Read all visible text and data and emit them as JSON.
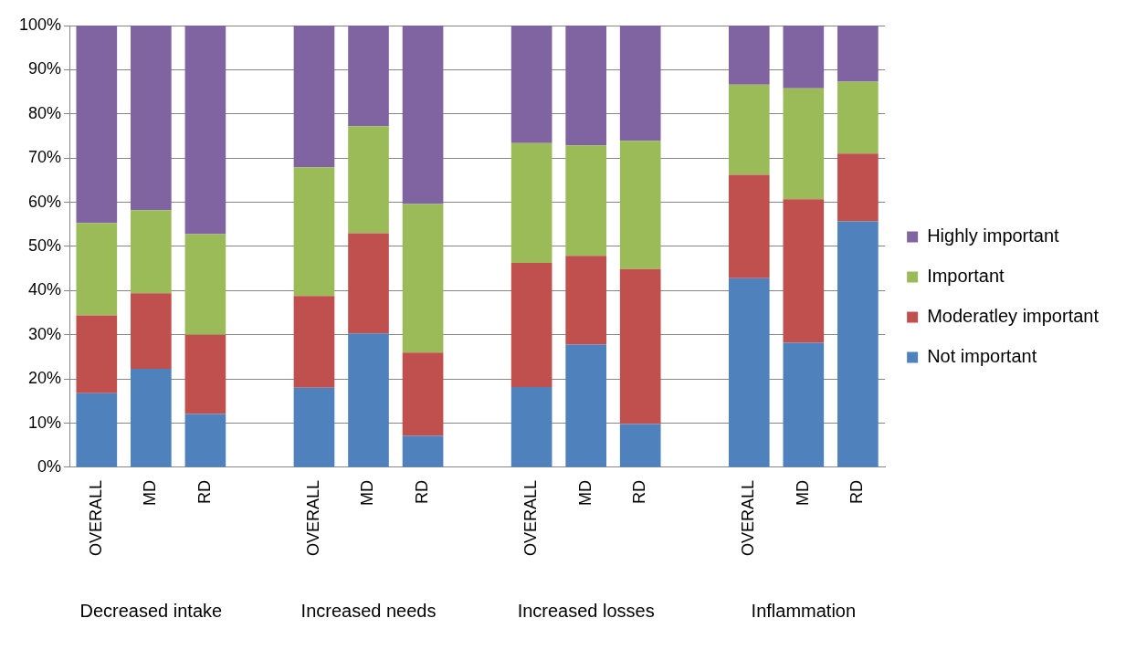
{
  "chart_data": {
    "type": "bar",
    "stacked": true,
    "categories": [
      "OVERALL",
      "MD",
      "RD",
      null,
      "OVERALL",
      "MD",
      "RD",
      null,
      "OVERALL",
      "MD",
      "RD",
      null,
      "OVERALL",
      "MD",
      "RD"
    ],
    "series": [
      {
        "name": "Not important",
        "color": "#4f81bd",
        "values": [
          16.8,
          22.3,
          12.1,
          null,
          18,
          30.3,
          7.1,
          null,
          18.2,
          27.8,
          9.8,
          null,
          42.8,
          28.2,
          55.7
        ]
      },
      {
        "name": "Moderatley important",
        "color": "#c0504d",
        "values": [
          17.6,
          17.1,
          17.9,
          null,
          20.8,
          22.7,
          18.9,
          null,
          28.1,
          20.1,
          35.1,
          null,
          23.4,
          32.5,
          15.3
        ]
      },
      {
        "name": "Important",
        "color": "#9bbb59",
        "values": [
          20.9,
          18.8,
          22.8,
          null,
          29.1,
          24.2,
          33.6,
          null,
          27.1,
          25,
          29,
          null,
          20.4,
          25.1,
          16.3
        ]
      },
      {
        "name": "Highly important",
        "color": "#8064a2",
        "values": [
          44.7,
          41.8,
          47.2,
          null,
          32.1,
          22.8,
          40.4,
          null,
          26.6,
          27.1,
          26.1,
          null,
          13.4,
          14.2,
          12.7
        ]
      }
    ],
    "ylim": [
      0,
      100
    ],
    "yticks": [
      {
        "value": 0,
        "label": "0%"
      },
      {
        "value": 10,
        "label": "10%"
      },
      {
        "value": 20,
        "label": "20%"
      },
      {
        "value": 30,
        "label": "30%"
      },
      {
        "value": 40,
        "label": "40%"
      },
      {
        "value": 50,
        "label": "50%"
      },
      {
        "value": 60,
        "label": "60%"
      },
      {
        "value": 70,
        "label": "70%"
      },
      {
        "value": 80,
        "label": "80%"
      },
      {
        "value": 90,
        "label": "90%"
      },
      {
        "value": 100,
        "label": "100%"
      }
    ],
    "grid": "y",
    "legend": "right",
    "annotations": [
      "Decreased intake",
      "Increased needs",
      "Increased losses",
      "Inflammation"
    ]
  }
}
